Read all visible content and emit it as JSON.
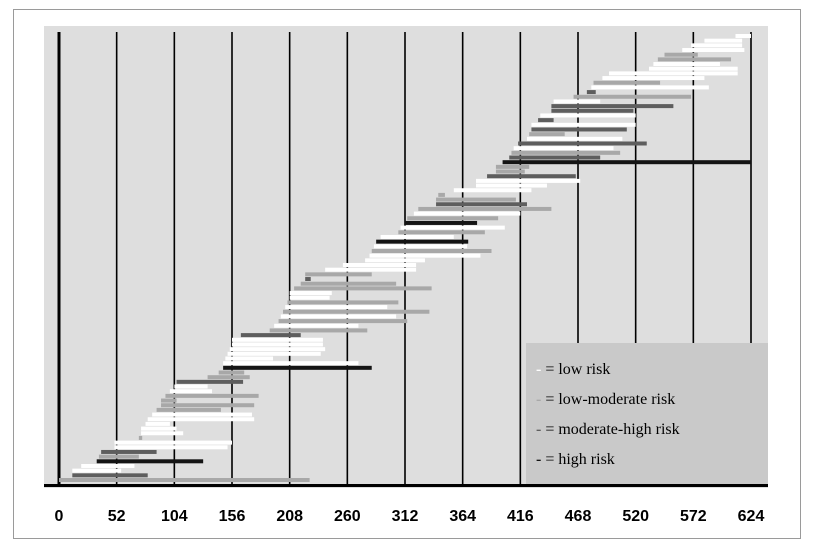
{
  "chart_data": {
    "type": "gantt",
    "title": "",
    "xlabel": "",
    "ylabel": "",
    "xlim": [
      0,
      624
    ],
    "x_ticks": [
      "0",
      "52",
      "104",
      "156",
      "208",
      "260",
      "312",
      "364",
      "416",
      "468",
      "520",
      "572",
      "624"
    ],
    "grid": "vertical lines at each tick",
    "legend_position": "bottom-right",
    "legend": [
      {
        "key": "low",
        "marker": "-",
        "text": " = low risk",
        "color": "#ffffff"
      },
      {
        "key": "lowmod",
        "marker": "-",
        "text": " = low-moderate risk",
        "color": "#a8a8a8"
      },
      {
        "key": "modhigh",
        "marker": "-",
        "text": " = moderate-high risk",
        "color": "#5e5e5e"
      },
      {
        "key": "high",
        "marker": "-",
        "text": " = high risk",
        "color": "#141414"
      }
    ],
    "series": [
      {
        "risk": "high",
        "color": "#141414",
        "bars": [
          [
            34,
            130
          ],
          [
            148,
            282
          ],
          [
            286,
            369
          ],
          [
            312,
            377
          ],
          [
            400,
            624
          ]
        ]
      },
      {
        "risk": "modhigh",
        "color": "#5e5e5e",
        "bars": [
          [
            12,
            80
          ],
          [
            38,
            88
          ],
          [
            106,
            166
          ],
          [
            164,
            218
          ],
          [
            222,
            227
          ],
          [
            340,
            422
          ],
          [
            386,
            466
          ],
          [
            406,
            488
          ],
          [
            414,
            530
          ],
          [
            426,
            512
          ],
          [
            444,
            518
          ],
          [
            432,
            446
          ],
          [
            444,
            554
          ],
          [
            476,
            484
          ]
        ]
      },
      {
        "risk": "lowmod",
        "color": "#a8a8a8",
        "bars": [
          [
            0,
            226
          ],
          [
            36,
            72
          ],
          [
            72,
            75
          ],
          [
            88,
            146
          ],
          [
            92,
            176
          ],
          [
            92,
            106
          ],
          [
            96,
            180
          ],
          [
            134,
            172
          ],
          [
            144,
            167
          ],
          [
            190,
            278
          ],
          [
            198,
            314
          ],
          [
            202,
            334
          ],
          [
            206,
            306
          ],
          [
            212,
            336
          ],
          [
            218,
            304
          ],
          [
            222,
            282
          ],
          [
            282,
            390
          ],
          [
            306,
            384
          ],
          [
            314,
            396
          ],
          [
            324,
            444
          ],
          [
            340,
            412
          ],
          [
            342,
            348
          ],
          [
            394,
            420
          ],
          [
            394,
            424
          ],
          [
            408,
            506
          ],
          [
            424,
            456
          ],
          [
            464,
            570
          ],
          [
            482,
            542
          ],
          [
            540,
            606
          ],
          [
            546,
            576
          ]
        ]
      },
      {
        "risk": "low",
        "color": "#ffffff",
        "bars": [
          [
            12,
            56
          ],
          [
            20,
            68
          ],
          [
            50,
            152
          ],
          [
            50,
            156
          ],
          [
            74,
            112
          ],
          [
            74,
            106
          ],
          [
            78,
            100
          ],
          [
            80,
            176
          ],
          [
            84,
            174
          ],
          [
            100,
            138
          ],
          [
            104,
            134
          ],
          [
            148,
            270
          ],
          [
            150,
            193
          ],
          [
            152,
            236
          ],
          [
            154,
            240
          ],
          [
            156,
            238
          ],
          [
            156,
            238
          ],
          [
            194,
            270
          ],
          [
            200,
            304
          ],
          [
            204,
            296
          ],
          [
            208,
            244
          ],
          [
            208,
            246
          ],
          [
            240,
            322
          ],
          [
            256,
            322
          ],
          [
            276,
            330
          ],
          [
            280,
            380
          ],
          [
            284,
            368
          ],
          [
            290,
            356
          ],
          [
            308,
            402
          ],
          [
            320,
            416
          ],
          [
            356,
            426
          ],
          [
            376,
            440
          ],
          [
            376,
            470
          ],
          [
            410,
            500
          ],
          [
            422,
            508
          ],
          [
            426,
            520
          ],
          [
            434,
            520
          ],
          [
            446,
            488
          ],
          [
            480,
            586
          ],
          [
            490,
            582
          ],
          [
            496,
            612
          ],
          [
            536,
            596
          ],
          [
            532,
            612
          ],
          [
            562,
            618
          ],
          [
            570,
            616
          ],
          [
            582,
            616
          ],
          [
            610,
            624
          ]
        ]
      }
    ]
  }
}
